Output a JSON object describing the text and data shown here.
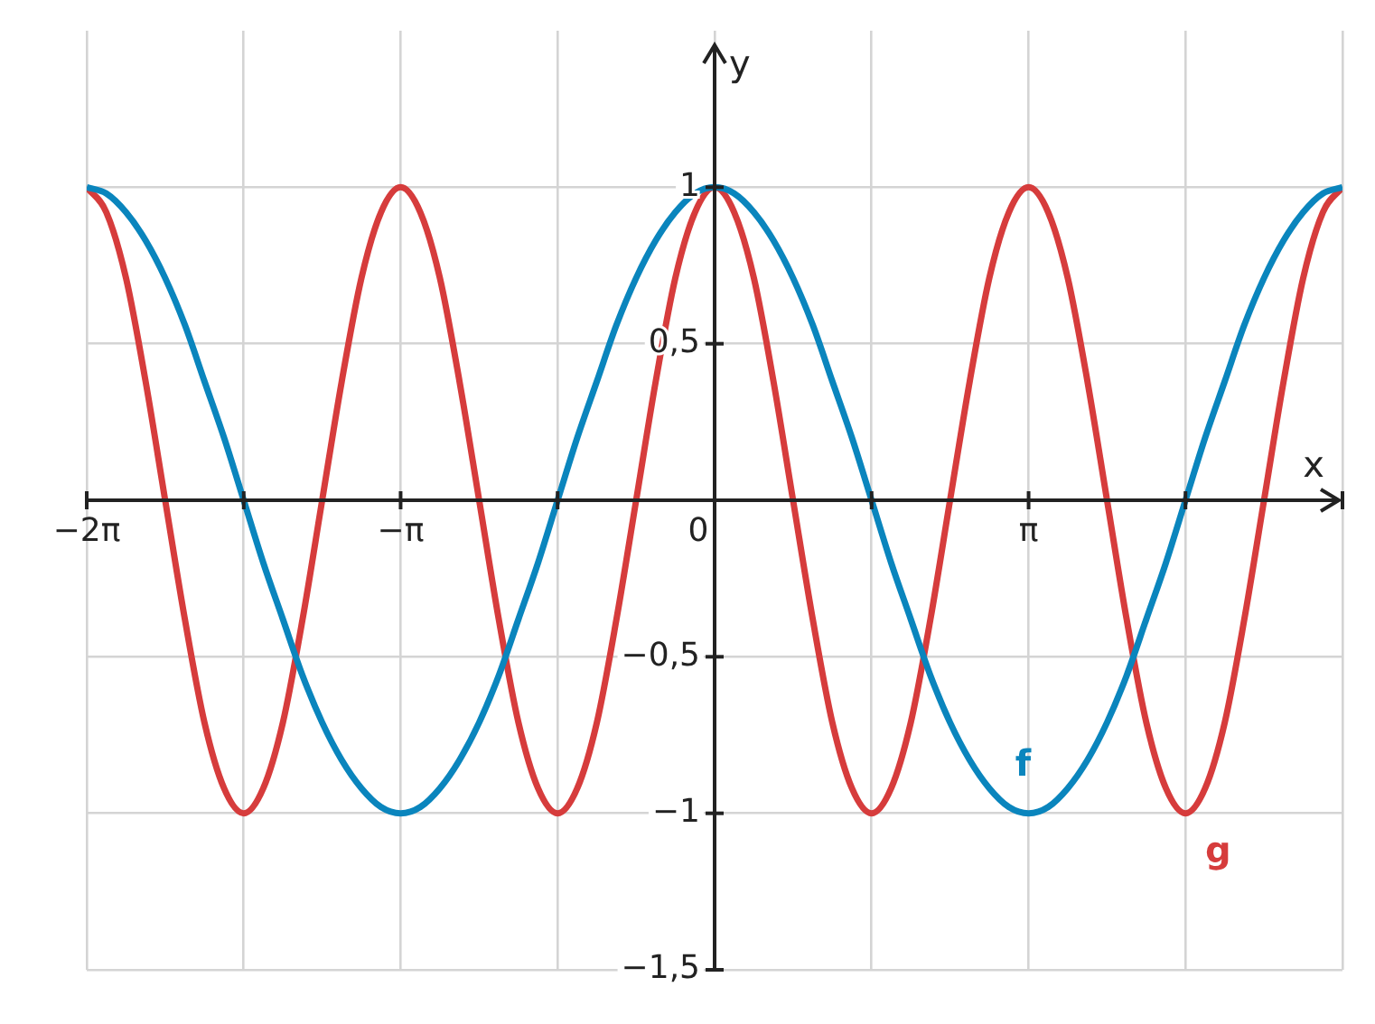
{
  "chart_data": {
    "type": "line",
    "xlabel": "x",
    "ylabel": "y",
    "x": [
      -6.283,
      -6.087,
      -5.89,
      -5.694,
      -5.498,
      -5.301,
      -5.105,
      -4.909,
      -4.712,
      -4.516,
      -4.32,
      -4.123,
      -3.927,
      -3.731,
      -3.534,
      -3.338,
      -3.142,
      -2.945,
      -2.749,
      -2.553,
      -2.356,
      -2.16,
      -1.963,
      -1.767,
      -1.571,
      -1.374,
      -1.178,
      -0.982,
      -0.785,
      -0.589,
      -0.393,
      -0.196,
      0,
      0.196,
      0.393,
      0.589,
      0.785,
      0.982,
      1.178,
      1.374,
      1.571,
      1.767,
      1.963,
      2.16,
      2.356,
      2.553,
      2.749,
      2.945,
      3.142,
      3.338,
      3.534,
      3.731,
      3.927,
      4.123,
      4.32,
      4.516,
      4.712,
      4.909,
      5.105,
      5.301,
      5.498,
      5.694,
      5.89,
      6.087,
      6.283
    ],
    "series": [
      {
        "name": "f",
        "color": "#0a85bd",
        "values": [
          1,
          0.98,
          0.92,
          0.83,
          0.71,
          0.56,
          0.38,
          0.2,
          0,
          -0.2,
          -0.38,
          -0.56,
          -0.71,
          -0.83,
          -0.92,
          -0.98,
          -1,
          -0.98,
          -0.92,
          -0.83,
          -0.71,
          -0.56,
          -0.38,
          -0.2,
          0,
          0.2,
          0.38,
          0.56,
          0.71,
          0.83,
          0.92,
          0.98,
          1,
          0.98,
          0.92,
          0.83,
          0.71,
          0.56,
          0.38,
          0.2,
          0,
          -0.2,
          -0.38,
          -0.56,
          -0.71,
          -0.83,
          -0.92,
          -0.98,
          -1,
          -0.98,
          -0.92,
          -0.83,
          -0.71,
          -0.56,
          -0.38,
          -0.2,
          0,
          0.2,
          0.38,
          0.56,
          0.71,
          0.83,
          0.92,
          0.98,
          1
        ]
      },
      {
        "name": "g",
        "color": "#d63c3c",
        "values": [
          1,
          0.92,
          0.71,
          0.38,
          0,
          -0.38,
          -0.71,
          -0.92,
          -1,
          -0.92,
          -0.71,
          -0.38,
          0,
          0.38,
          0.71,
          0.92,
          1,
          0.92,
          0.71,
          0.38,
          0,
          -0.38,
          -0.71,
          -0.92,
          -1,
          -0.92,
          -0.71,
          -0.38,
          0,
          0.38,
          0.71,
          0.92,
          1,
          0.92,
          0.71,
          0.38,
          0,
          -0.38,
          -0.71,
          -0.92,
          -1,
          -0.92,
          -0.71,
          -0.38,
          0,
          0.38,
          0.71,
          0.92,
          1,
          0.92,
          0.71,
          0.38,
          0,
          -0.38,
          -0.71,
          -0.92,
          -1,
          -0.92,
          -0.71,
          -0.38,
          0,
          0.38,
          0.71,
          0.92,
          1
        ]
      }
    ],
    "xlim": [
      -6.283,
      6.283
    ],
    "ylim": [
      -1.5,
      1.5
    ],
    "xticks": [
      {
        "value": -6.283,
        "label": "−2π"
      },
      {
        "value": -4.712,
        "label": null
      },
      {
        "value": -3.142,
        "label": "−π"
      },
      {
        "value": -1.571,
        "label": null
      },
      {
        "value": 0,
        "label": "0"
      },
      {
        "value": 1.571,
        "label": null
      },
      {
        "value": 3.142,
        "label": "π"
      },
      {
        "value": 4.712,
        "label": null
      },
      {
        "value": 6.283,
        "label": null
      }
    ],
    "yticks": [
      {
        "value": -1.5,
        "label": "−1,5"
      },
      {
        "value": -1,
        "label": "−1"
      },
      {
        "value": -0.5,
        "label": "−0,5"
      },
      {
        "value": 0.5,
        "label": "0,5"
      },
      {
        "value": 1,
        "label": "1"
      }
    ],
    "grid": true,
    "legend": false,
    "marker": "none",
    "line_style": "solid"
  }
}
